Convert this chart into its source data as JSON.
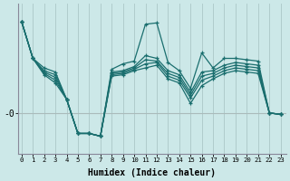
{
  "xlabel": "Humidex (Indice chaleur)",
  "background_color": "#cce8e8",
  "line_color": "#1a6e6e",
  "grid_color": "#b0cccc",
  "x_ticks": [
    0,
    1,
    2,
    3,
    4,
    5,
    6,
    7,
    8,
    9,
    10,
    11,
    12,
    13,
    14,
    15,
    16,
    17,
    18,
    19,
    20,
    21,
    22,
    23
  ],
  "xlim": [
    -0.3,
    23.5
  ],
  "ylim": [
    -4.5,
    6.5
  ],
  "ytick_label": "-0",
  "ytick_value": -1.5,
  "series": [
    [
      5.2,
      2.5,
      1.8,
      1.5,
      -0.5,
      -3.0,
      -3.0,
      -3.2,
      1.7,
      2.1,
      2.3,
      5.0,
      5.1,
      2.2,
      1.6,
      0.3,
      2.9,
      1.8,
      2.5,
      2.5,
      2.4,
      2.3,
      -1.5,
      -1.6
    ],
    [
      5.2,
      2.5,
      1.6,
      1.3,
      -0.5,
      -3.0,
      -3.0,
      -3.2,
      1.5,
      1.6,
      1.9,
      2.7,
      2.5,
      1.6,
      1.3,
      0.0,
      1.5,
      1.6,
      2.0,
      2.2,
      2.1,
      2.0,
      -1.5,
      -1.6
    ],
    [
      5.2,
      2.5,
      1.5,
      1.1,
      -0.5,
      -3.0,
      -3.0,
      -3.2,
      1.4,
      1.5,
      1.8,
      2.4,
      2.3,
      1.4,
      1.1,
      -0.2,
      1.2,
      1.4,
      1.8,
      2.0,
      1.9,
      1.8,
      -1.5,
      -1.6
    ],
    [
      5.2,
      2.5,
      1.4,
      0.9,
      -0.5,
      -3.0,
      -3.0,
      -3.2,
      1.3,
      1.4,
      1.7,
      2.1,
      2.2,
      1.2,
      0.9,
      -0.4,
      0.9,
      1.2,
      1.6,
      1.8,
      1.7,
      1.6,
      -1.5,
      -1.6
    ],
    [
      5.2,
      2.5,
      1.3,
      0.7,
      -0.5,
      -3.0,
      -3.0,
      -3.2,
      1.2,
      1.3,
      1.6,
      1.8,
      2.0,
      1.0,
      0.7,
      -0.8,
      0.5,
      1.0,
      1.4,
      1.6,
      1.5,
      1.4,
      -1.5,
      -1.6
    ]
  ]
}
